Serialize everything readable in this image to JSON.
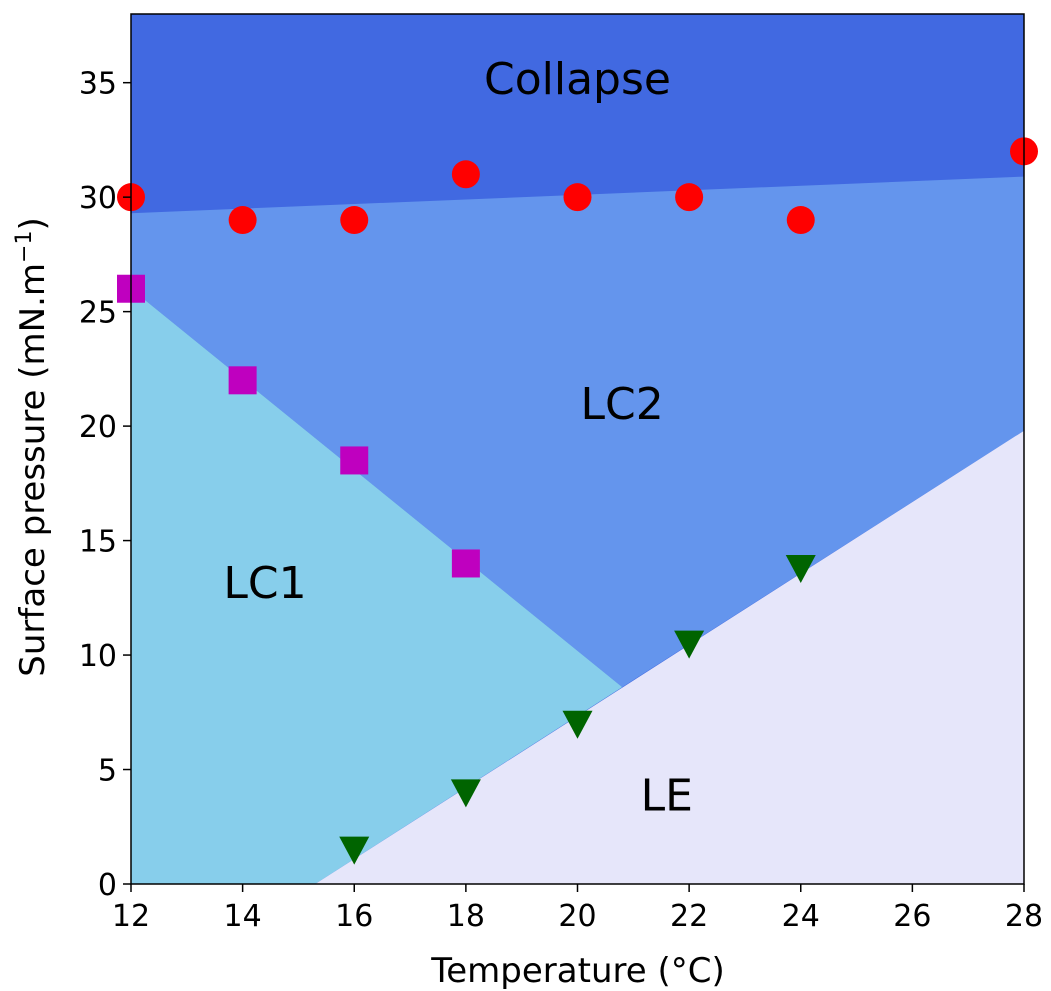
{
  "chart_data": {
    "type": "scatter",
    "title": "",
    "xlabel": "Temperature (°C)",
    "ylabel": "Surface pressure (mN.m",
    "ylabel_sup": "−1",
    "ylabel_close": ")",
    "xlim": [
      12,
      28
    ],
    "ylim": [
      0,
      38
    ],
    "grid": false,
    "xticks": [
      12,
      14,
      16,
      18,
      20,
      22,
      24,
      26,
      28
    ],
    "yticks": [
      0,
      5,
      10,
      15,
      20,
      25,
      30,
      35
    ],
    "regions": [
      {
        "name": "Collapse",
        "color": "#4169e1",
        "label_at": [
          20,
          34.5
        ]
      },
      {
        "name": "LC2",
        "color": "#6495ed",
        "label_at": [
          20.8,
          20.3
        ]
      },
      {
        "name": "LC1",
        "color": "#87ceeb",
        "label_at": [
          14.4,
          12.5
        ]
      },
      {
        "name": "LE",
        "color": "#e6e6fa",
        "label_at": [
          21.6,
          3.2
        ]
      }
    ],
    "boundaries": {
      "collapse_line": [
        [
          12,
          29.3
        ],
        [
          28,
          30.9
        ]
      ],
      "lc1_lc2_line": [
        [
          12,
          26
        ],
        [
          20.8,
          8.6
        ]
      ],
      "le_line": [
        [
          15.3,
          0
        ],
        [
          28,
          19.8
        ]
      ]
    },
    "series": [
      {
        "marker": "circle",
        "color": "#ff0000",
        "x": [
          12,
          14,
          16,
          18,
          20,
          22,
          24,
          28
        ],
        "y": [
          30,
          29,
          29,
          31,
          30,
          30,
          29,
          32
        ]
      },
      {
        "marker": "square",
        "color": "#bf00bf",
        "x": [
          12,
          14,
          16,
          18
        ],
        "y": [
          26,
          22,
          18.5,
          14
        ]
      },
      {
        "marker": "triangle-down",
        "color": "#006400",
        "x": [
          16,
          18,
          20,
          22,
          24
        ],
        "y": [
          1.5,
          4,
          7,
          10.5,
          13.8
        ]
      }
    ]
  }
}
